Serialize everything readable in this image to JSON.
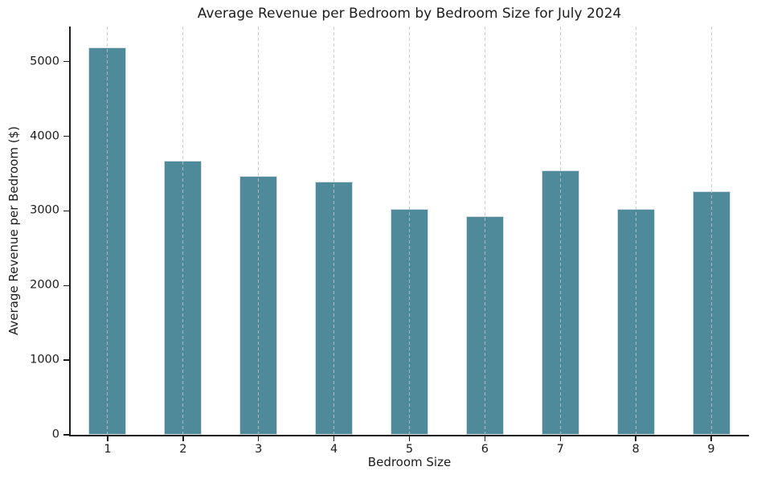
{
  "chart_data": {
    "type": "bar",
    "title": "Average Revenue per Bedroom by Bedroom Size for July 2024",
    "xlabel": "Bedroom Size",
    "ylabel": "Average Revenue per Bedroom ($)",
    "categories": [
      "1",
      "2",
      "3",
      "4",
      "5",
      "6",
      "7",
      "8",
      "9"
    ],
    "values": [
      5190,
      3670,
      3470,
      3390,
      3030,
      2930,
      3540,
      3030,
      3260
    ],
    "yticks": [
      0,
      1000,
      2000,
      3000,
      4000,
      5000
    ],
    "ylim": [
      0,
      5470
    ],
    "bar_color": "#4e8a9a",
    "bar_edge_color": "#d6dde0",
    "grid": "x-only, dashed, drawn over bars",
    "grid_color": "#c3c3c3",
    "axis_color": "#1c1c1c",
    "background": "#ffffff",
    "legend": "none"
  }
}
